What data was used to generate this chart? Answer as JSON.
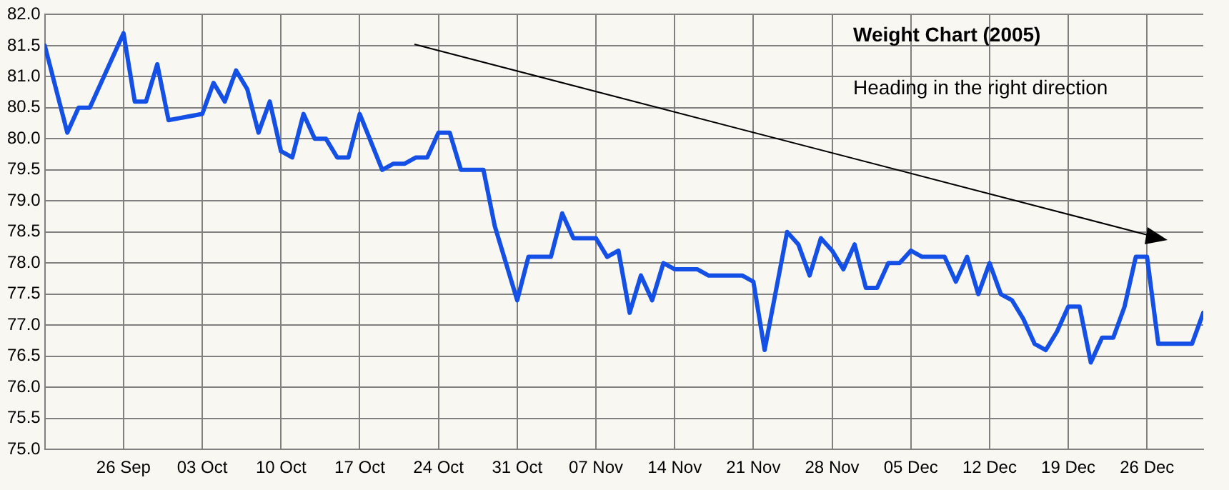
{
  "chart_data": {
    "type": "line",
    "title": "Weight Chart (2005)",
    "annotations": [
      "Heading in the right direction"
    ],
    "x": [
      "2005-09-19",
      "2005-09-21",
      "2005-09-22",
      "2005-09-23",
      "2005-09-26",
      "2005-09-27",
      "2005-09-28",
      "2005-09-29",
      "2005-09-30",
      "2005-10-03",
      "2005-10-04",
      "2005-10-05",
      "2005-10-06",
      "2005-10-07",
      "2005-10-08",
      "2005-10-09",
      "2005-10-10",
      "2005-10-11",
      "2005-10-12",
      "2005-10-13",
      "2005-10-14",
      "2005-10-15",
      "2005-10-16",
      "2005-10-17",
      "2005-10-19",
      "2005-10-20",
      "2005-10-21",
      "2005-10-22",
      "2005-10-23",
      "2005-10-24",
      "2005-10-25",
      "2005-10-26",
      "2005-10-28",
      "2005-10-29",
      "2005-10-31",
      "2005-11-01",
      "2005-11-03",
      "2005-11-04",
      "2005-11-05",
      "2005-11-07",
      "2005-11-08",
      "2005-11-09",
      "2005-11-10",
      "2005-11-11",
      "2005-11-12",
      "2005-11-13",
      "2005-11-14",
      "2005-11-16",
      "2005-11-17",
      "2005-11-20",
      "2005-11-21",
      "2005-11-22",
      "2005-11-24",
      "2005-11-25",
      "2005-11-26",
      "2005-11-27",
      "2005-11-28",
      "2005-11-29",
      "2005-11-30",
      "2005-12-01",
      "2005-12-02",
      "2005-12-03",
      "2005-12-04",
      "2005-12-05",
      "2005-12-06",
      "2005-12-08",
      "2005-12-09",
      "2005-12-10",
      "2005-12-11",
      "2005-12-12",
      "2005-12-13",
      "2005-12-14",
      "2005-12-15",
      "2005-12-16",
      "2005-12-17",
      "2005-12-18",
      "2005-12-19",
      "2005-12-20",
      "2005-12-21",
      "2005-12-22",
      "2005-12-23",
      "2005-12-24",
      "2005-12-25",
      "2005-12-26",
      "2005-12-27",
      "2005-12-30",
      "2005-12-31"
    ],
    "series": [
      {
        "color": "#1450e6",
        "values": [
          81.5,
          80.1,
          80.5,
          80.5,
          81.7,
          80.6,
          80.6,
          81.2,
          80.3,
          80.4,
          80.9,
          80.6,
          81.1,
          80.8,
          80.1,
          80.6,
          79.8,
          79.7,
          80.4,
          80.0,
          80.0,
          79.7,
          79.7,
          80.4,
          79.5,
          79.6,
          79.6,
          79.7,
          79.7,
          80.1,
          80.1,
          79.5,
          79.5,
          78.6,
          77.4,
          78.1,
          78.1,
          78.8,
          78.4,
          78.4,
          78.1,
          78.2,
          77.2,
          77.8,
          77.4,
          78.0,
          77.9,
          77.9,
          77.8,
          77.8,
          77.7,
          76.6,
          78.5,
          78.3,
          77.8,
          78.4,
          78.2,
          77.9,
          78.3,
          77.6,
          77.6,
          78.0,
          78.0,
          78.2,
          78.1,
          78.1,
          77.7,
          78.1,
          77.5,
          78.0,
          77.5,
          77.4,
          77.1,
          76.7,
          76.6,
          76.9,
          77.3,
          77.3,
          76.4,
          76.8,
          76.8,
          77.3,
          78.1,
          78.1,
          76.7,
          76.7,
          77.2
        ]
      }
    ],
    "xlim": [
      "2005-09-19",
      "2005-12-31"
    ],
    "xticks": [
      {
        "value": "2005-09-26",
        "label": "26 Sep"
      },
      {
        "value": "2005-10-03",
        "label": "03 Oct"
      },
      {
        "value": "2005-10-10",
        "label": "10 Oct"
      },
      {
        "value": "2005-10-17",
        "label": "17 Oct"
      },
      {
        "value": "2005-10-24",
        "label": "24 Oct"
      },
      {
        "value": "2005-10-31",
        "label": "31 Oct"
      },
      {
        "value": "2005-11-07",
        "label": "07 Nov"
      },
      {
        "value": "2005-11-14",
        "label": "14 Nov"
      },
      {
        "value": "2005-11-21",
        "label": "21 Nov"
      },
      {
        "value": "2005-11-28",
        "label": "28 Nov"
      },
      {
        "value": "2005-12-05",
        "label": "05 Dec"
      },
      {
        "value": "2005-12-12",
        "label": "12 Dec"
      },
      {
        "value": "2005-12-19",
        "label": "19 Dec"
      },
      {
        "value": "2005-12-26",
        "label": "26 Dec"
      }
    ],
    "ylim": [
      75,
      82
    ],
    "yticks": [
      {
        "value": 75,
        "label": "75.0"
      },
      {
        "value": 75.5,
        "label": "75.5"
      },
      {
        "value": 76,
        "label": "76.0"
      },
      {
        "value": 76.5,
        "label": "76.5"
      },
      {
        "value": 77,
        "label": "77.0"
      },
      {
        "value": 77.5,
        "label": "77.5"
      },
      {
        "value": 78,
        "label": "78.0"
      },
      {
        "value": 78.5,
        "label": "78.5"
      },
      {
        "value": 79,
        "label": "79.0"
      },
      {
        "value": 79.5,
        "label": "79.5"
      },
      {
        "value": 80,
        "label": "80.0"
      },
      {
        "value": 80.5,
        "label": "80.5"
      },
      {
        "value": 81,
        "label": "81.0"
      },
      {
        "value": 81.5,
        "label": "81.5"
      },
      {
        "value": 82,
        "label": "82.0"
      }
    ],
    "grid": true,
    "legend": false,
    "marker": "none",
    "line_style": "solid"
  }
}
